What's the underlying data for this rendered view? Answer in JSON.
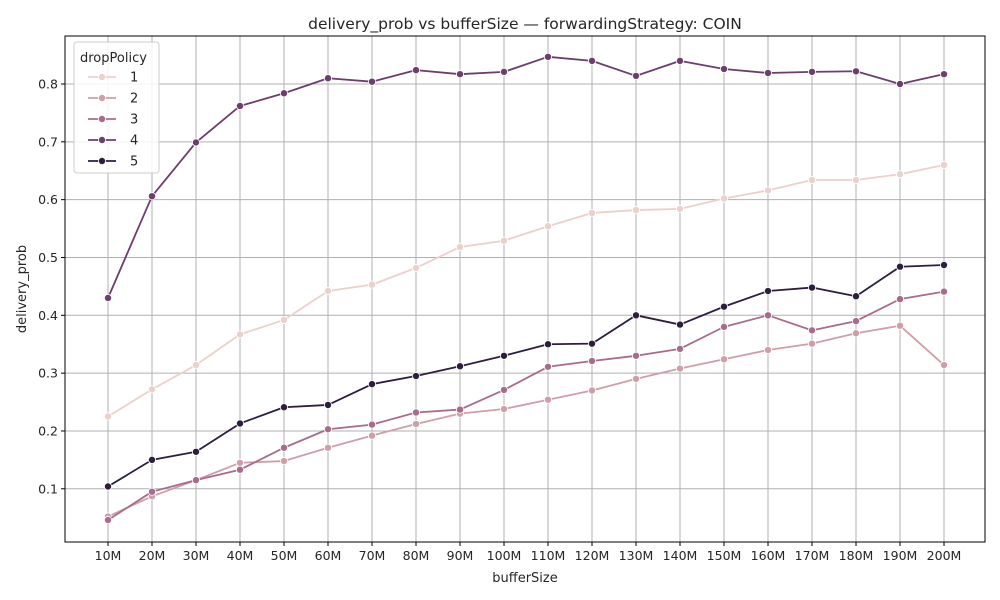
{
  "chart_data": {
    "type": "line",
    "title": "delivery_prob vs bufferSize — forwardingStrategy: COIN",
    "xlabel": "bufferSize",
    "ylabel": "delivery_prob",
    "categories": [
      "10M",
      "20M",
      "30M",
      "40M",
      "50M",
      "60M",
      "70M",
      "80M",
      "90M",
      "100M",
      "110M",
      "120M",
      "130M",
      "140M",
      "150M",
      "160M",
      "170M",
      "180M",
      "190M",
      "200M"
    ],
    "ylim": [
      0.008,
      0.883
    ],
    "yticks": [
      "0.1",
      "0.2",
      "0.3",
      "0.4",
      "0.5",
      "0.6",
      "0.7",
      "0.8"
    ],
    "grid": true,
    "legend": {
      "title": "dropPolicy",
      "placement": "top-left"
    },
    "series": [
      {
        "name": "1",
        "color": "#ebd0cb",
        "values": [
          0.225,
          0.272,
          0.314,
          0.367,
          0.392,
          0.442,
          0.453,
          0.482,
          0.518,
          0.529,
          0.554,
          0.577,
          0.582,
          0.584,
          0.602,
          0.616,
          0.634,
          0.634,
          0.644,
          0.66
        ]
      },
      {
        "name": "2",
        "color": "#d09ea9",
        "values": [
          0.052,
          0.087,
          0.115,
          0.145,
          0.148,
          0.171,
          0.192,
          0.212,
          0.23,
          0.238,
          0.254,
          0.27,
          0.29,
          0.308,
          0.324,
          0.34,
          0.351,
          0.369,
          0.382,
          0.314
        ]
      },
      {
        "name": "3",
        "color": "#a86b8c",
        "values": [
          0.046,
          0.095,
          0.115,
          0.133,
          0.171,
          0.203,
          0.211,
          0.232,
          0.237,
          0.271,
          0.311,
          0.321,
          0.33,
          0.342,
          0.38,
          0.4,
          0.374,
          0.39,
          0.428,
          0.441
        ]
      },
      {
        "name": "4",
        "color": "#6c3d6d",
        "values": [
          0.43,
          0.606,
          0.699,
          0.762,
          0.784,
          0.81,
          0.804,
          0.824,
          0.817,
          0.821,
          0.847,
          0.84,
          0.814,
          0.84,
          0.826,
          0.819,
          0.821,
          0.822,
          0.8,
          0.817
        ]
      },
      {
        "name": "5",
        "color": "#2d1e3e",
        "values": [
          0.104,
          0.15,
          0.164,
          0.213,
          0.241,
          0.245,
          0.281,
          0.295,
          0.312,
          0.33,
          0.35,
          0.351,
          0.4,
          0.384,
          0.415,
          0.442,
          0.448,
          0.433,
          0.484,
          0.487
        ]
      }
    ]
  }
}
